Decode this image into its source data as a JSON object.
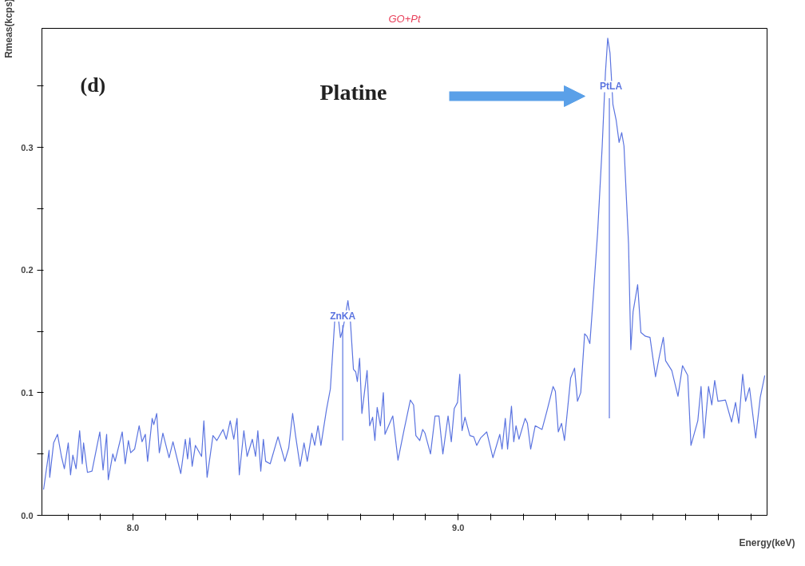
{
  "chart_data": {
    "type": "line",
    "title": "GO+Pt",
    "xlabel": "Energy(keV)",
    "ylabel": "Rmeas(kcps)",
    "xlim": [
      7.72,
      9.95
    ],
    "ylim": [
      0,
      0.397
    ],
    "xticks": [
      {
        "value": 7.8,
        "label": null
      },
      {
        "value": 7.9,
        "label": null
      },
      {
        "value": 8.0,
        "label": "8.0"
      },
      {
        "value": 8.1,
        "label": null
      },
      {
        "value": 8.2,
        "label": null
      },
      {
        "value": 8.3,
        "label": null
      },
      {
        "value": 8.4,
        "label": null
      },
      {
        "value": 8.5,
        "label": null
      },
      {
        "value": 8.6,
        "label": null
      },
      {
        "value": 8.7,
        "label": null
      },
      {
        "value": 8.8,
        "label": null
      },
      {
        "value": 8.9,
        "label": null
      },
      {
        "value": 9.0,
        "label": "9.0"
      },
      {
        "value": 9.1,
        "label": null
      },
      {
        "value": 9.2,
        "label": null
      },
      {
        "value": 9.3,
        "label": null
      },
      {
        "value": 9.4,
        "label": null
      },
      {
        "value": 9.5,
        "label": null
      },
      {
        "value": 9.6,
        "label": null
      },
      {
        "value": 9.7,
        "label": null
      },
      {
        "value": 9.8,
        "label": null
      },
      {
        "value": 9.9,
        "label": null
      }
    ],
    "yticks": [
      {
        "value": 0,
        "label": "0.0"
      },
      {
        "value": 0.05,
        "label": null
      },
      0.1,
      {
        "value": 0.15,
        "label": null
      },
      0.2,
      {
        "value": 0.25,
        "label": null
      },
      0.3,
      {
        "value": 0.35,
        "label": null
      }
    ],
    "grid": false,
    "line_style": "solid",
    "marker": "none",
    "annotations": [
      "(d)",
      "Platine",
      {
        "text": "ZnKA",
        "x": 8.645,
        "y": 0.158
      },
      {
        "text": "PtLA",
        "x": 9.47,
        "y": 0.345
      }
    ],
    "series": [
      {
        "color": "#5b74e0",
        "x": [
          7.725,
          7.742,
          7.744,
          7.756,
          7.768,
          7.78,
          7.789,
          7.801,
          7.808,
          7.815,
          7.825,
          7.836,
          7.844,
          7.848,
          7.86,
          7.874,
          7.898,
          7.908,
          7.919,
          7.924,
          7.938,
          7.945,
          7.967,
          7.976,
          7.986,
          7.993,
          8.005,
          8.019,
          8.028,
          8.038,
          8.045,
          8.059,
          8.064,
          8.073,
          8.081,
          8.092,
          8.111,
          8.123,
          8.147,
          8.161,
          8.168,
          8.175,
          8.182,
          8.192,
          8.211,
          8.218,
          8.228,
          8.246,
          8.258,
          8.277,
          8.287,
          8.299,
          8.31,
          8.32,
          8.327,
          8.341,
          8.351,
          8.367,
          8.377,
          8.384,
          8.393,
          8.401,
          8.408,
          8.422,
          8.446,
          8.467,
          8.479,
          8.491,
          8.5,
          8.514,
          8.526,
          8.536,
          8.55,
          8.559,
          8.569,
          8.578,
          8.595,
          8.607,
          8.621,
          8.63,
          8.638,
          8.645,
          8.654,
          8.661,
          8.668,
          8.678,
          8.685,
          8.69,
          8.697,
          8.704,
          8.72,
          8.728,
          8.737,
          8.744,
          8.751,
          8.761,
          8.77,
          8.775,
          8.799,
          8.815,
          8.834,
          8.853,
          8.863,
          8.87,
          8.882,
          8.891,
          8.898,
          8.915,
          8.929,
          8.941,
          8.953,
          8.969,
          8.979,
          8.988,
          8.998,
          9.005,
          9.012,
          9.021,
          9.036,
          9.048,
          9.057,
          9.069,
          9.088,
          9.107,
          9.128,
          9.135,
          9.145,
          9.152,
          9.164,
          9.171,
          9.178,
          9.187,
          9.206,
          9.213,
          9.223,
          9.237,
          9.258,
          9.273,
          9.292,
          9.299,
          9.308,
          9.318,
          9.327,
          9.346,
          9.358,
          9.367,
          9.377,
          9.389,
          9.396,
          9.405,
          9.415,
          9.429,
          9.443,
          9.453,
          9.46,
          9.467,
          9.476,
          9.486,
          9.495,
          9.503,
          9.51,
          9.524,
          9.531,
          9.538,
          9.552,
          9.562,
          9.576,
          9.59,
          9.607,
          9.619,
          9.631,
          9.638,
          9.657,
          9.676,
          9.69,
          9.706,
          9.716,
          9.737,
          9.747,
          9.756,
          9.77,
          9.78,
          9.789,
          9.799,
          9.822,
          9.841,
          9.853,
          9.863,
          9.875,
          9.884,
          9.896,
          9.915,
          9.929,
          9.943
        ],
        "values": [
          0.021,
          0.053,
          0.031,
          0.059,
          0.066,
          0.048,
          0.038,
          0.059,
          0.033,
          0.049,
          0.038,
          0.069,
          0.042,
          0.059,
          0.035,
          0.036,
          0.068,
          0.037,
          0.066,
          0.029,
          0.05,
          0.044,
          0.068,
          0.042,
          0.061,
          0.051,
          0.054,
          0.073,
          0.06,
          0.066,
          0.044,
          0.079,
          0.074,
          0.083,
          0.051,
          0.067,
          0.047,
          0.06,
          0.034,
          0.062,
          0.046,
          0.063,
          0.04,
          0.057,
          0.048,
          0.077,
          0.031,
          0.065,
          0.061,
          0.07,
          0.062,
          0.077,
          0.062,
          0.079,
          0.033,
          0.069,
          0.048,
          0.062,
          0.048,
          0.069,
          0.036,
          0.062,
          0.044,
          0.042,
          0.064,
          0.044,
          0.055,
          0.083,
          0.065,
          0.04,
          0.059,
          0.044,
          0.067,
          0.057,
          0.073,
          0.057,
          0.086,
          0.103,
          0.161,
          0.165,
          0.145,
          0.151,
          0.164,
          0.175,
          0.161,
          0.119,
          0.117,
          0.109,
          0.128,
          0.083,
          0.118,
          0.073,
          0.08,
          0.061,
          0.088,
          0.073,
          0.1,
          0.066,
          0.081,
          0.045,
          0.07,
          0.094,
          0.09,
          0.065,
          0.061,
          0.07,
          0.067,
          0.05,
          0.081,
          0.081,
          0.05,
          0.081,
          0.06,
          0.087,
          0.092,
          0.115,
          0.069,
          0.08,
          0.065,
          0.064,
          0.057,
          0.063,
          0.068,
          0.047,
          0.066,
          0.054,
          0.079,
          0.054,
          0.089,
          0.06,
          0.073,
          0.062,
          0.079,
          0.075,
          0.054,
          0.073,
          0.07,
          0.085,
          0.105,
          0.101,
          0.068,
          0.075,
          0.061,
          0.112,
          0.12,
          0.093,
          0.1,
          0.148,
          0.146,
          0.14,
          0.176,
          0.231,
          0.301,
          0.361,
          0.389,
          0.377,
          0.335,
          0.322,
          0.304,
          0.312,
          0.301,
          0.221,
          0.135,
          0.166,
          0.188,
          0.149,
          0.146,
          0.145,
          0.113,
          0.13,
          0.145,
          0.126,
          0.118,
          0.097,
          0.122,
          0.114,
          0.057,
          0.077,
          0.105,
          0.063,
          0.105,
          0.09,
          0.11,
          0.093,
          0.094,
          0.076,
          0.092,
          0.075,
          0.115,
          0.093,
          0.104,
          0.063,
          0.096,
          0.114
        ]
      },
      {
        "color": "#5b74e0",
        "x": [
          8.645,
          8.645
        ],
        "values": [
          0.061,
          0.155
        ]
      },
      {
        "color": "#5b74e0",
        "x": [
          9.465,
          9.465
        ],
        "values": [
          0.079,
          0.34
        ]
      }
    ]
  }
}
